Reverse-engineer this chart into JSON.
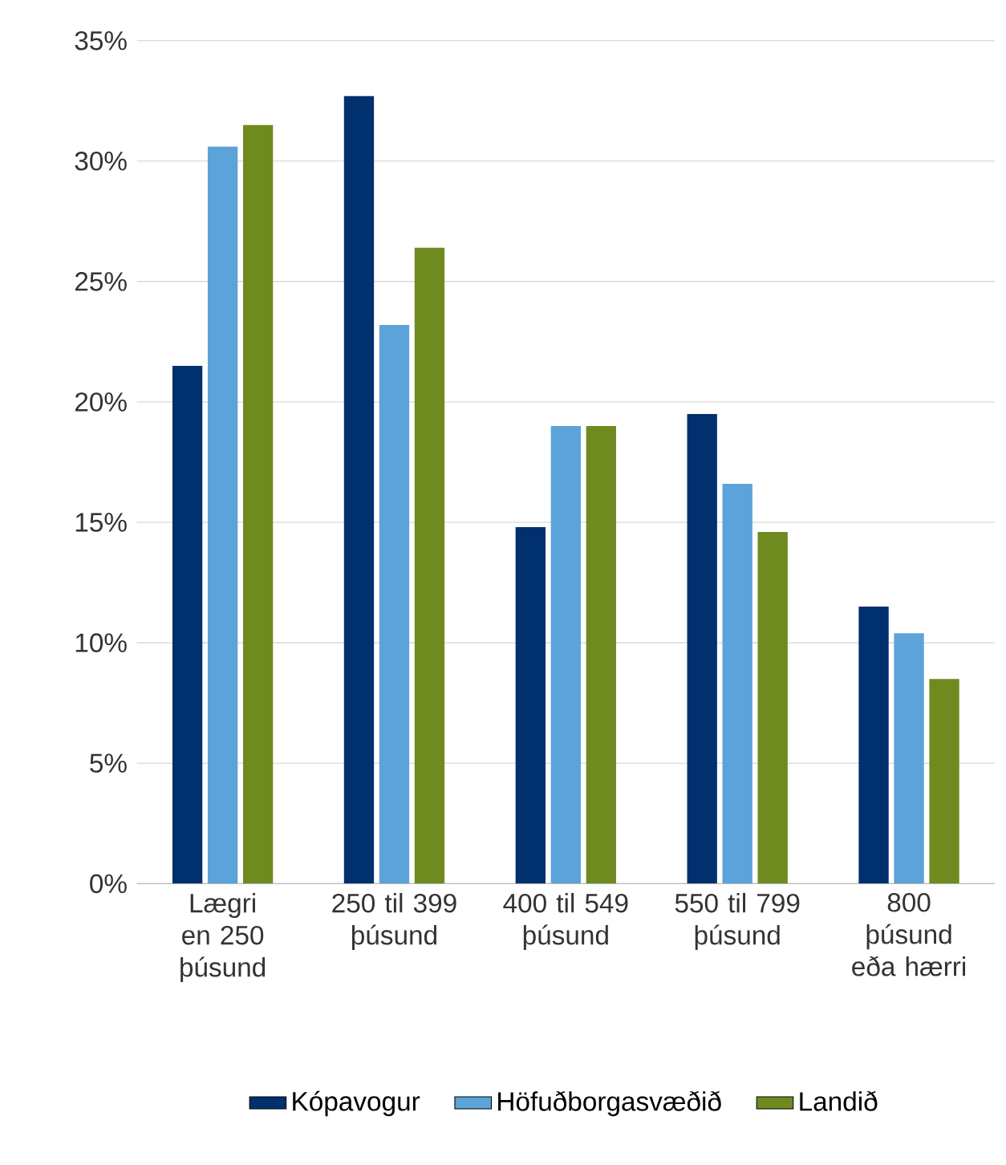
{
  "chart_data": {
    "type": "bar",
    "categories": [
      "Lægri en 250 þúsund",
      "250 til 399 þúsund",
      "400 til 549 þúsund",
      "550 til 799 þúsund",
      "800 þúsund eða hærri"
    ],
    "series": [
      {
        "name": "Kópavogur",
        "color": "#00306e",
        "values": [
          21.5,
          32.7,
          14.8,
          19.5,
          11.5
        ]
      },
      {
        "name": "Höfuðborgasvæðið",
        "color": "#5ba3d8",
        "values": [
          30.6,
          23.2,
          19.0,
          16.6,
          10.4
        ]
      },
      {
        "name": "Landið",
        "color": "#6f8b1f",
        "values": [
          31.5,
          26.4,
          19.0,
          14.6,
          8.5
        ]
      }
    ],
    "ylim": [
      0,
      35
    ],
    "yticks": [
      {
        "value": 0,
        "label": "0%"
      },
      {
        "value": 5,
        "label": "5%"
      },
      {
        "value": 10,
        "label": "10%"
      },
      {
        "value": 15,
        "label": "15%"
      },
      {
        "value": 20,
        "label": "20%"
      },
      {
        "value": 25,
        "label": "25%"
      },
      {
        "value": 30,
        "label": "30%"
      },
      {
        "value": 35,
        "label": "35%"
      }
    ],
    "grid": "y",
    "legend": "bottom"
  }
}
